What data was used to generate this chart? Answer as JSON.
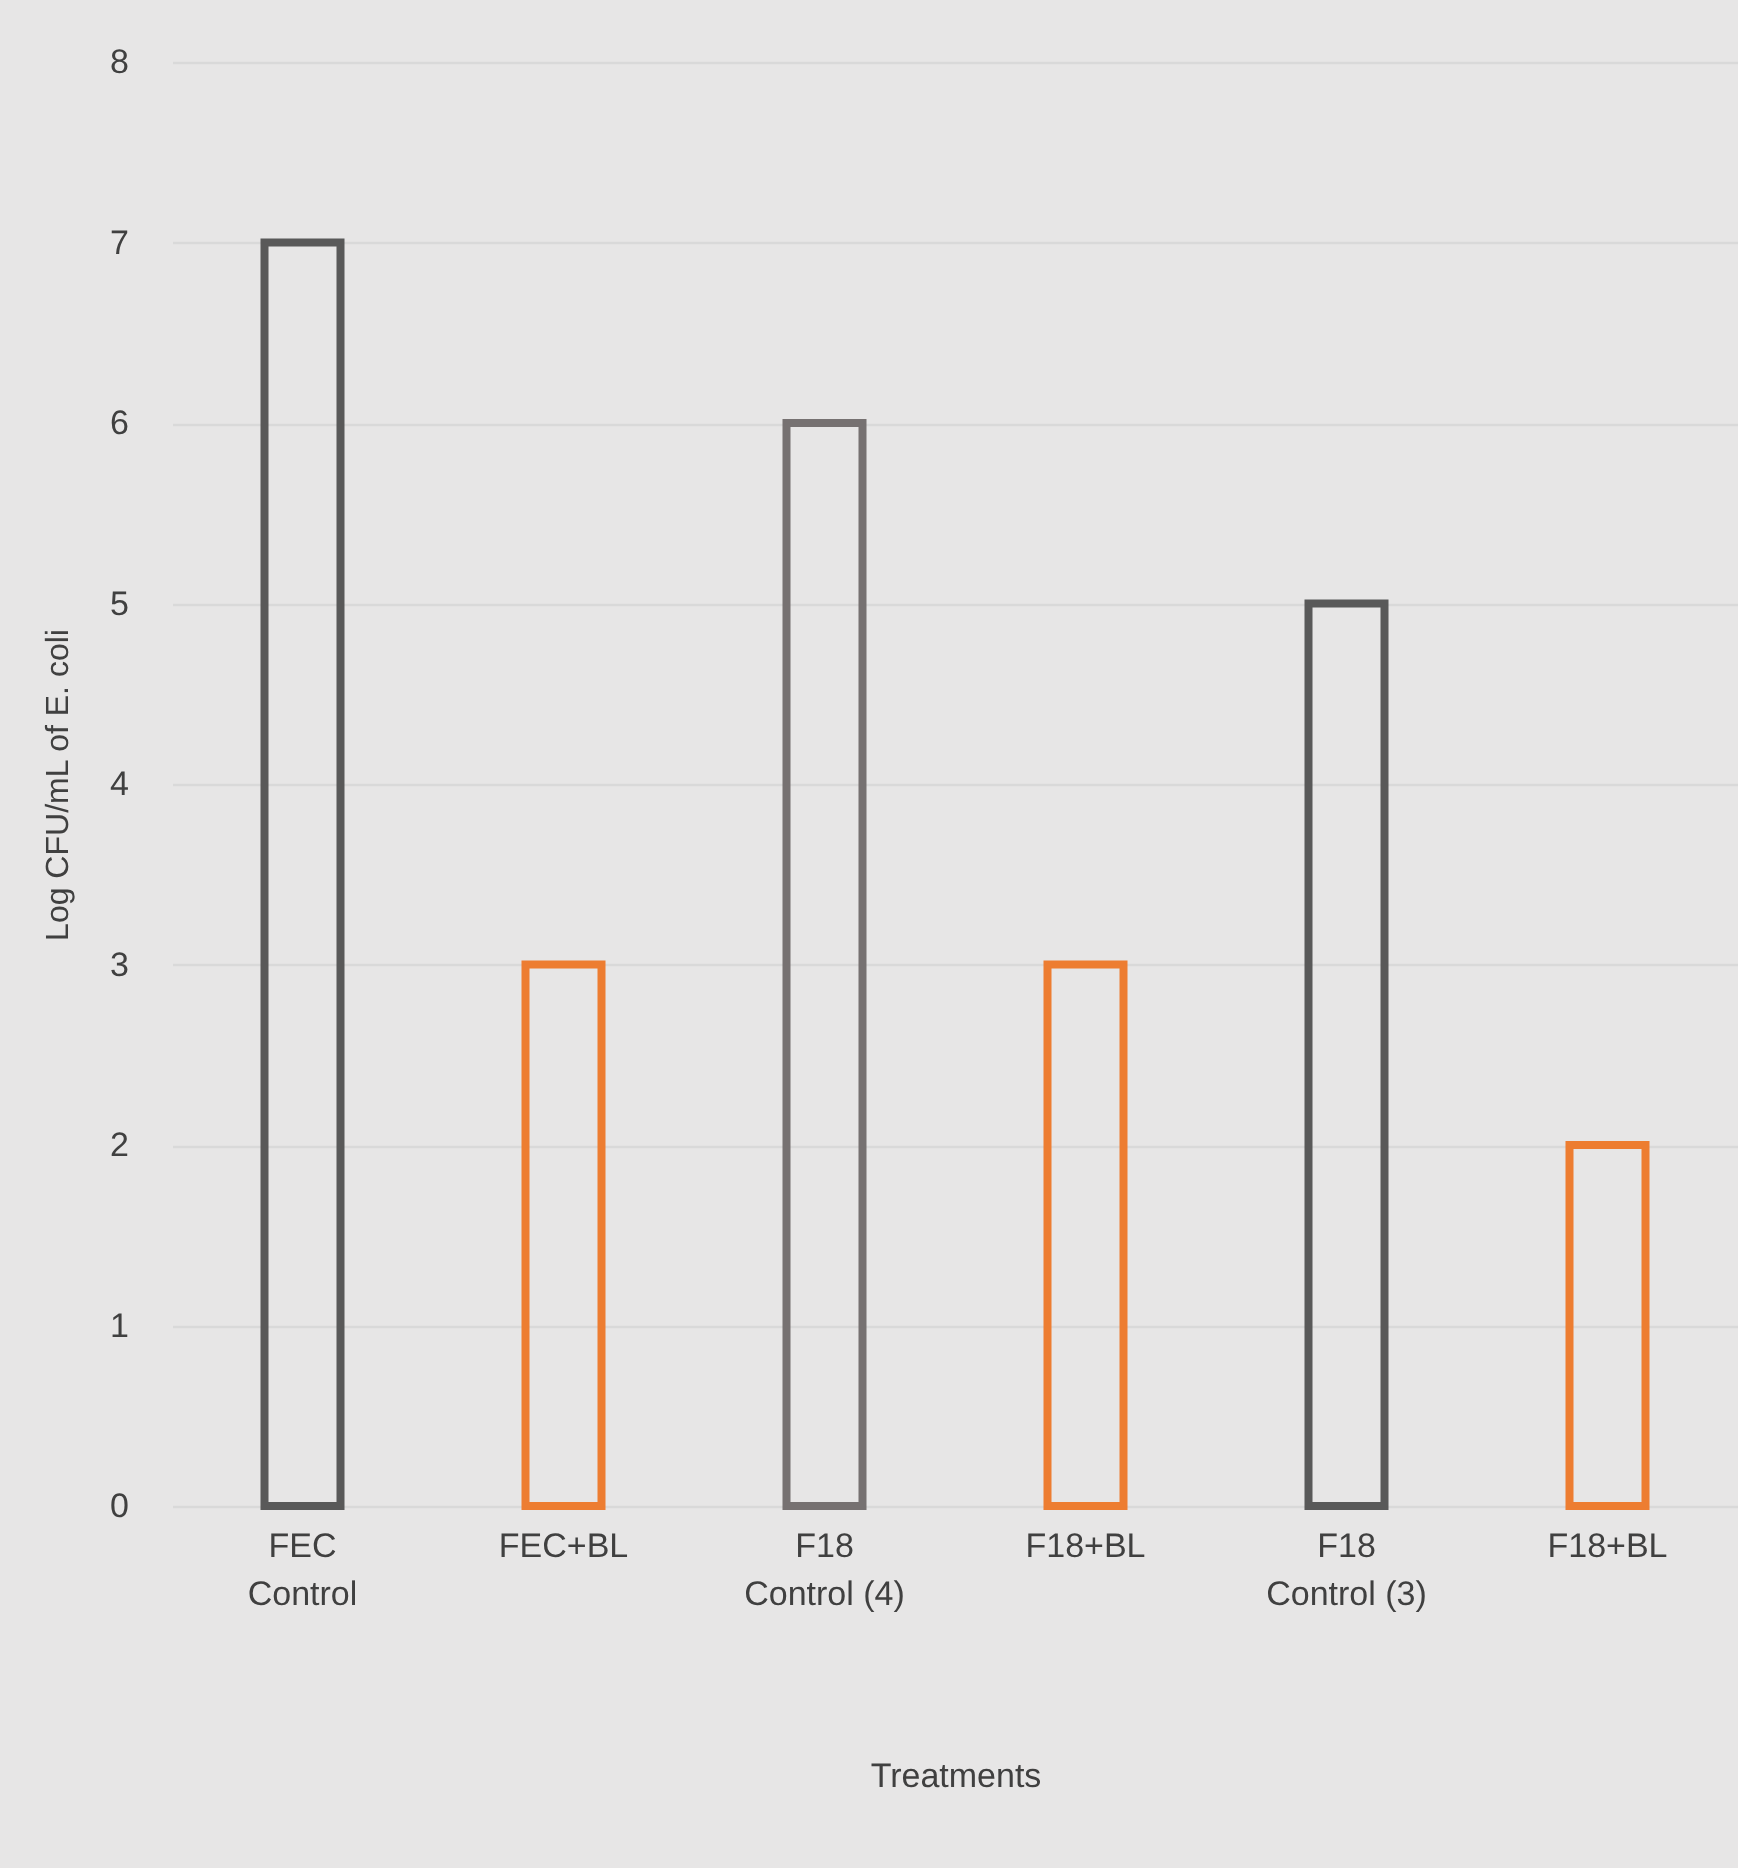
{
  "chart_data": {
    "type": "bar",
    "xlabel": "Treatments",
    "ylabel": "Log CFU/mL of E. coli",
    "categories": [
      "FEC Control",
      "FEC+BL",
      "F18 Control (4)",
      "F18+BL",
      "F18 Control (3)",
      "F18+BL"
    ],
    "values": [
      7,
      3,
      6,
      3,
      5,
      2
    ],
    "colors": [
      "#595959",
      "#ed7d31",
      "#767171",
      "#ed7d31",
      "#595959",
      "#ed7d31"
    ],
    "ylim": [
      0,
      8
    ],
    "yticks": [
      0,
      1,
      2,
      3,
      4,
      5,
      6,
      7,
      8
    ],
    "grid": true
  }
}
